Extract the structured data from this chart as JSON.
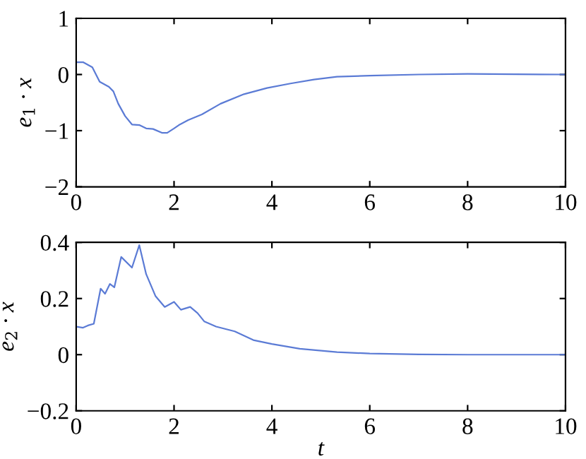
{
  "chart_data": [
    {
      "type": "line",
      "ylabel": "e$_{1}$ · x",
      "xlim": [
        0,
        10
      ],
      "ylim": [
        -2,
        1
      ],
      "xticks": [
        0,
        2,
        4,
        6,
        8,
        10
      ],
      "yticks": [
        {
          "value": -2,
          "label": "−2"
        },
        {
          "value": -1,
          "label": "−1"
        },
        0,
        1
      ],
      "grid": false,
      "series": [
        {
          "color": "#5b7bd5",
          "x": [
            0,
            0.14,
            0.33,
            0.48,
            0.67,
            0.76,
            0.86,
            1.0,
            1.14,
            1.29,
            1.43,
            1.57,
            1.76,
            1.86,
            2.0,
            2.1,
            2.29,
            2.57,
            2.95,
            3.43,
            3.9,
            4.38,
            4.86,
            5.33,
            6,
            7,
            8,
            10
          ],
          "values": [
            0.22,
            0.22,
            0.13,
            -0.13,
            -0.22,
            -0.3,
            -0.52,
            -0.74,
            -0.89,
            -0.9,
            -0.96,
            -0.97,
            -1.04,
            -1.04,
            -0.96,
            -0.9,
            -0.81,
            -0.71,
            -0.52,
            -0.35,
            -0.24,
            -0.16,
            -0.09,
            -0.04,
            -0.02,
            0,
            0.01,
            0
          ]
        }
      ]
    },
    {
      "type": "line",
      "ylabel": "e$_{2}$ · x",
      "xlabel": "t",
      "xlim": [
        0,
        10
      ],
      "ylim": [
        -0.2,
        0.4
      ],
      "xticks": [
        0,
        2,
        4,
        6,
        8,
        10
      ],
      "yticks": [
        {
          "value": -0.2,
          "label": "−0.2"
        },
        0,
        0.2,
        0.4
      ],
      "grid": false,
      "series": [
        {
          "color": "#5b7bd5",
          "x": [
            0,
            0.14,
            0.24,
            0.36,
            0.5,
            0.59,
            0.69,
            0.78,
            0.92,
            1.14,
            1.29,
            1.43,
            1.62,
            1.81,
            2.0,
            2.14,
            2.33,
            2.48,
            2.62,
            2.86,
            3.24,
            3.62,
            4.0,
            4.57,
            5.33,
            6,
            7,
            8,
            10
          ],
          "values": [
            0.1,
            0.096,
            0.104,
            0.11,
            0.235,
            0.217,
            0.252,
            0.24,
            0.348,
            0.31,
            0.39,
            0.287,
            0.209,
            0.17,
            0.188,
            0.16,
            0.17,
            0.148,
            0.118,
            0.1,
            0.083,
            0.052,
            0.038,
            0.021,
            0.009,
            0.004,
            0.001,
            0,
            0
          ]
        }
      ]
    }
  ]
}
